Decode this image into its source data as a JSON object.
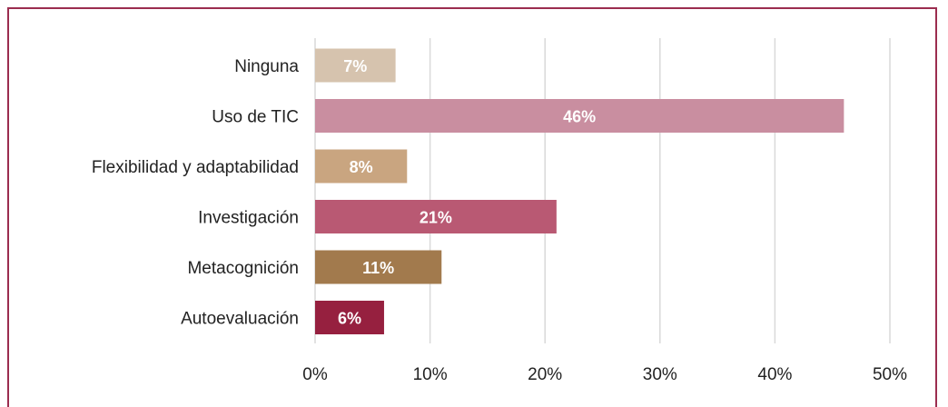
{
  "chart_data": {
    "type": "bar",
    "orientation": "horizontal",
    "title": "",
    "xlabel": "",
    "ylabel": "",
    "xlim": [
      0,
      50
    ],
    "ticks": [
      0,
      10,
      20,
      30,
      40,
      50
    ],
    "tick_labels": [
      "0%",
      "10%",
      "20%",
      "30%",
      "40%",
      "50%"
    ],
    "grid": true,
    "legend": "none",
    "categories": [
      "Ninguna",
      "Uso de TIC",
      "Flexibilidad y adaptabilidad",
      "Investigación",
      "Metacognición",
      "Autoevaluación"
    ],
    "values": [
      7,
      46,
      8,
      21,
      11,
      6
    ],
    "value_labels": [
      "7%",
      "46%",
      "8%",
      "21%",
      "11%",
      "6%"
    ],
    "colors": [
      "#d6c3ae",
      "#c98ea0",
      "#c9a580",
      "#b95973",
      "#a27a4d",
      "#96203f"
    ],
    "frame_color": "#9b2d4f",
    "grid_color": "#d9d9d9"
  }
}
